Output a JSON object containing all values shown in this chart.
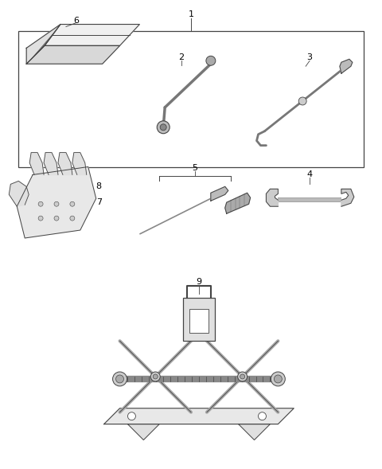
{
  "background_color": "#ffffff",
  "line_color": "#444444",
  "label_color": "#000000",
  "fig_width": 4.8,
  "fig_height": 5.89,
  "dpi": 100
}
